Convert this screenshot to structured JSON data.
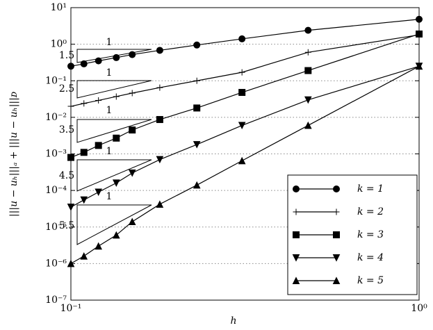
{
  "chart_data": {
    "type": "line",
    "xlabel": "h",
    "ylabel": "|||u − uₕ|||ₐ + |||u − uₕ|||ᴅ",
    "xscale": "log",
    "yscale": "log",
    "grid": true,
    "legend": "lower right",
    "x": [
      0.1,
      0.109,
      0.12,
      0.135,
      0.15,
      0.18,
      0.23,
      0.31,
      0.48,
      1
    ],
    "series": [
      {
        "name": "k = 1",
        "color": "#000000",
        "marker": "circle",
        "values": [
          0.25,
          0.29,
          0.35,
          0.43,
          0.52,
          0.68,
          0.95,
          1.4,
          2.4,
          4.8
        ]
      },
      {
        "name": "k = 2",
        "color": "#000000",
        "marker": "plus",
        "values": [
          0.02,
          0.024,
          0.029,
          0.037,
          0.046,
          0.065,
          0.1,
          0.17,
          0.6,
          1.8
        ]
      },
      {
        "name": "k = 3",
        "color": "#000000",
        "marker": "square",
        "values": [
          0.0008,
          0.0011,
          0.0017,
          0.0027,
          0.0045,
          0.0087,
          0.018,
          0.048,
          0.19,
          1.9
        ]
      },
      {
        "name": "k = 4",
        "color": "#000000",
        "marker": "triangle-down",
        "values": [
          3.5e-05,
          5.5e-05,
          9e-05,
          0.00016,
          0.0003,
          0.0007,
          0.0018,
          0.006,
          0.03,
          0.25
        ]
      },
      {
        "name": "k = 5",
        "color": "#000000",
        "marker": "triangle-up",
        "values": [
          1e-06,
          1.6e-06,
          3e-06,
          6e-06,
          1.4e-05,
          4.2e-05,
          0.00014,
          0.00065,
          0.006,
          0.25
        ]
      }
    ],
    "slope_triangles": [
      {
        "run": "1",
        "rise": "1.5"
      },
      {
        "run": "1",
        "rise": "2.5"
      },
      {
        "run": "1",
        "rise": "3.5"
      },
      {
        "run": "1",
        "rise": "4.5"
      },
      {
        "run": "1",
        "rise": "5.5"
      }
    ],
    "xlim": [
      0.1,
      1
    ],
    "xticks": [
      {
        "value": 0.1,
        "label": "10⁻¹"
      },
      {
        "value": 1,
        "label": "10⁰"
      }
    ],
    "ylim": [
      1e-07,
      10
    ],
    "yticks": [
      {
        "value": 1e-07,
        "label": "10⁻⁷"
      },
      {
        "value": 1e-06,
        "label": "10⁻⁶"
      },
      {
        "value": 1e-05,
        "label": "10⁻⁵"
      },
      {
        "value": 0.0001,
        "label": "10⁻⁴"
      },
      {
        "value": 0.001,
        "label": "10⁻³"
      },
      {
        "value": 0.01,
        "label": "10⁻²"
      },
      {
        "value": 0.1,
        "label": "10⁻¹"
      },
      {
        "value": 1,
        "label": "10⁰"
      },
      {
        "value": 10,
        "label": "10¹"
      }
    ]
  }
}
